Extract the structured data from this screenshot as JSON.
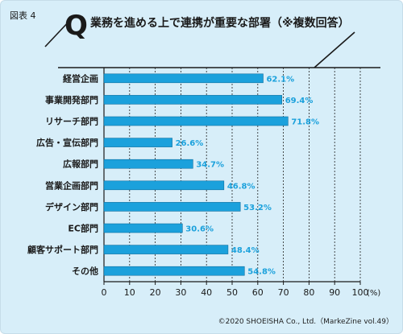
{
  "figure_label": "図表 4",
  "q_mark": "Q",
  "title": "業務を進める上で連携が重要な部署（※複数回答）",
  "footer": "©2020 SHOEISHA Co., Ltd.（MarkeZine vol.49）",
  "colors": {
    "bar": "#1ba1dc",
    "value_text": "#1ba1dc",
    "grid": "#222222",
    "panel": "#d7eef9"
  },
  "chart_data": {
    "type": "bar",
    "orientation": "horizontal",
    "categories": [
      "経営企画",
      "事業開発部門",
      "リサーチ部門",
      "広告・宣伝部門",
      "広報部門",
      "営業企画部門",
      "デザイン部門",
      "EC部門",
      "顧客サポート部門",
      "その他"
    ],
    "values": [
      62.1,
      69.4,
      71.8,
      26.6,
      34.7,
      46.8,
      53.2,
      30.6,
      48.4,
      54.8
    ],
    "value_labels": [
      "62.1%",
      "69.4%",
      "71.8%",
      "26.6%",
      "34.7%",
      "46.8%",
      "53.2%",
      "30.6%",
      "48.4%",
      "54.8%"
    ],
    "xlim": [
      0,
      100
    ],
    "xticks": [
      0,
      10,
      20,
      30,
      40,
      50,
      60,
      70,
      80,
      90,
      100
    ],
    "xunit": "(%)",
    "grid": "vertical dashed"
  }
}
